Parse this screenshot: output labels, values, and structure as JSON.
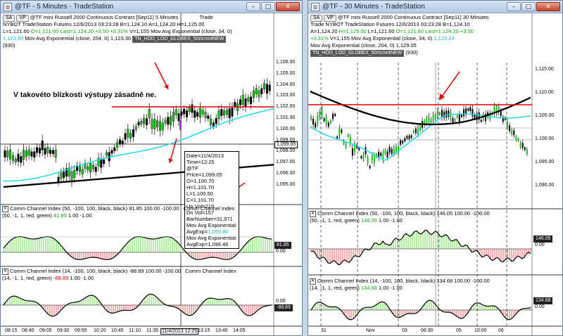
{
  "left": {
    "title": "@TF - 5 Minutes - TradeStation",
    "header_line1": "@TF  mini Russell 2000 Continuous Contract [Sep11]  5 Minutes",
    "header_line1b": "Trade",
    "header_line2": "NYBOT  TradeStation  Futures  12/6/2013  03:23:28  B=1,124.10  A=1,124.20  H=1,125.00",
    "header_line3a": "L=1,121.60",
    "header_line3b": "O=1,121.60  Last=1,124.20  +3.50  +0.31%",
    "header_line3c": "V=1,155  Mov Avg Exponential   (close, 34, 0)",
    "header_line4a": "1,123.90",
    "header_line4b": "Mov Avg Exponential   (close, 204, 0)  1,123.30",
    "header_tag": "TN_HOD_LOD_GLOBEX_50rtcmntNEW",
    "header_930": "(930)",
    "annotation": "V takovéto blízkosti výstupy zásadně ne.",
    "price_axis": [
      "1,106.00",
      "1,105.00",
      "1,104.00",
      "1,103.00",
      "1,102.00",
      "1,101.00",
      "1,100.00",
      "1,099.00",
      "1,098.00",
      "1,097.00",
      "1,096.00",
      "1,095.00"
    ],
    "price_tag": "1,099.05",
    "tooltip": {
      "l1": "Date=11/4/2013",
      "l2": "Time=12:25",
      "l3": "@TF",
      "l4": "Price=1,099.05",
      "l5": "O=1,100.70",
      "l6": "H=1,101.70",
      "l7": "L=1,100.50",
      "l8": "C=1,101.70",
      "l9": "Up Vol=219",
      "l10": "Dn Vol=157",
      "l11": "BarNumber=31,971",
      "l12": "Mov Avg Exponential:",
      "l13": "AvgExp=",
      "l13v": "1,099.80",
      "l14": "Mov Avg Exponential:",
      "l15": "AvgExp=1,096.46"
    },
    "cci1_title": "Comm Channel Index   (50, -100, 100, black, black)  81.85  100.00  -100.00",
    "cci1_title_tail": "Comm Channel Index",
    "cci1_line2": "(50, -1, 1, red, green)",
    "cci1_val": "81.85",
    "cci1_line2b": "1.00  -1.00",
    "cci1_tag": "81.85",
    "cci1_axis": "0.00",
    "cci2_title": "Comm Channel Index   (14, -100, 100, black, black)  -88.89  100.00  -100.00",
    "cci2_title_tail": "Comm Channel Index",
    "cci2_line2": "(14, -1, 1, red, green)",
    "cci2_val": "-88.89",
    "cci2_line2b": "1.00  -1.00",
    "cci2_tag": "-88.89",
    "cci2_axis": "0.00",
    "time_axis": [
      "08:15",
      "08:40",
      "09:05",
      "09:30",
      "09:55",
      "10:20",
      "10:45",
      "11:10",
      "11:35",
      "11/4/2013 12:25",
      "13:15",
      "13:40",
      "14:05"
    ],
    "chip_sa": "SA",
    "chip_vp": "VP"
  },
  "right": {
    "title": "@TF - 30 Minutes - TradeStation",
    "header_line1": "@TF  mini Russell 2000 Continuous Contract [Sep11]  30 Minutes",
    "header_line2": "Trade  NYBOT  TradeStation  Futures  12/6/2013  03:23:28  B=1,124.10",
    "header_line3a": "A=1,124.20",
    "header_line3b": "H=1,125.00",
    "header_line3c": "L=1,121.60",
    "header_line3d": "O=1,121.60",
    "header_line3e": "Last=1,124.20  +3.50",
    "header_line4a": "+0.31%",
    "header_line4b": "V=1,155  Mov Avg Exponential   (close, 34, 0)",
    "header_line4c": "1,123.24",
    "header_line5": "Mov Avg Exponential   (close, 204, 0)  1,129.05",
    "header_tag": "TN_HOD_LOD_GLOBEX_50rtcmntNEW",
    "header_930": "(930)",
    "price_axis": [
      "1,115.00",
      "1,110.00",
      "1,105.00",
      "1,100.00",
      "1,095.00",
      "1,090.00"
    ],
    "cci1_title": "Comm Channel Index   (50, -100, 100, black, black)  146.05  100.00  -100.00",
    "cci1_line2": "(50, -1, 1, red, green)",
    "cci1_val": "146.05",
    "cci1_line2b": "1.00  -1.00",
    "cci1_tag": "146.05",
    "cci1_axis": "0.00",
    "cci2_title": "Comm Channel Index   (14, -100, 100, black, black)  134.68  100.00  -100.00",
    "cci2_line2": "(14, -1, 1, red, green)",
    "cci2_val": "134.68",
    "cci2_line2b": "1.00  -1.00",
    "cci2_tag": "134.68",
    "cci2_axis": "0.00",
    "time_axis": [
      "31",
      "Nov",
      "03",
      "06:30",
      "05",
      "10:00",
      "06"
    ],
    "chip_sa": "SA",
    "chip_vp": "VP"
  }
}
